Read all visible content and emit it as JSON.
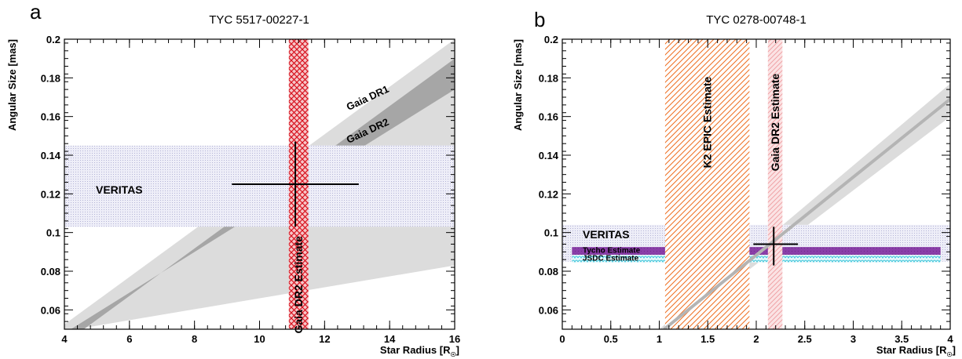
{
  "chart_data": [
    {
      "type": "line",
      "panel_letter": "a",
      "title": "TYC 5517-00227-1",
      "xlabel": "Star Radius [R",
      "xlabel_sub": "☉",
      "xlabel_close": "]",
      "ylabel": "Angular Size [mas]",
      "xlim": [
        4,
        16
      ],
      "ylim": [
        0.05,
        0.2
      ],
      "xticks": [
        4,
        6,
        8,
        10,
        12,
        14,
        16
      ],
      "xtick_labels": [
        "4",
        "6",
        "8",
        "10",
        "12",
        "14",
        "16"
      ],
      "yticks": [
        0.06,
        0.08,
        0.1,
        0.12,
        0.14,
        0.16,
        0.18,
        0.2
      ],
      "ytick_labels": [
        "0.06",
        "0.08",
        "0.1",
        "0.12",
        "0.14",
        "0.16",
        "0.18",
        "0.2"
      ],
      "bands": [
        {
          "label": "Gaia DR1",
          "color": "#dcdcdc",
          "lower": [
            [
              4,
              0.049
            ],
            [
              16,
              0.083
            ]
          ],
          "upper": [
            [
              3.8,
              0.05
            ],
            [
              16,
              0.2
            ]
          ]
        },
        {
          "label": "Gaia DR2",
          "color": "#a6a6a6",
          "lower": [
            [
              4.2,
              0.05
            ],
            [
              16,
              0.174
            ]
          ],
          "upper": [
            [
              4.6,
              0.05
            ],
            [
              16,
              0.19
            ]
          ]
        }
      ],
      "horizontal_regions": [
        {
          "label": "VERITAS",
          "ymin": 0.103,
          "ymax": 0.145,
          "color": "#e4e4f4"
        }
      ],
      "vertical_regions": [
        {
          "label": "Gaia DR2 Estimate",
          "xmin": 10.9,
          "xmax": 11.5,
          "color": "#e0202a"
        }
      ],
      "points": [
        {
          "x": 11.1,
          "y": 0.125,
          "xerr": [
            9.15,
            13.05
          ],
          "yerr": [
            0.103,
            0.147
          ]
        }
      ]
    },
    {
      "type": "line",
      "panel_letter": "b",
      "title": "TYC 0278-00748-1",
      "xlabel": "Star Radius [R",
      "xlabel_sub": "☉",
      "xlabel_close": "]",
      "ylabel": "Angular Size [mas]",
      "xlim": [
        0,
        4
      ],
      "ylim": [
        0.05,
        0.2
      ],
      "xticks": [
        0,
        0.5,
        1,
        1.5,
        2,
        2.5,
        3,
        3.5,
        4
      ],
      "xtick_labels": [
        "0",
        "0.5",
        "1",
        "1.5",
        "2",
        "2.5",
        "3",
        "3.5",
        "4"
      ],
      "yticks": [
        0.06,
        0.08,
        0.1,
        0.12,
        0.14,
        0.16,
        0.18,
        0.2
      ],
      "ytick_labels": [
        "0.06",
        "0.08",
        "0.1",
        "0.12",
        "0.14",
        "0.16",
        "0.18",
        "0.2"
      ],
      "bands": [
        {
          "label": "",
          "color": "#dcdcdc",
          "lower": [
            [
              1.12,
              0.05
            ],
            [
              4,
              0.16
            ]
          ],
          "upper": [
            [
              1.0,
              0.05
            ],
            [
              4,
              0.177
            ]
          ]
        }
      ],
      "lines": [
        {
          "color": "#b4b4b4",
          "points": [
            [
              1.05,
              0.05
            ],
            [
              4,
              0.169
            ]
          ]
        }
      ],
      "horizontal_regions": [
        {
          "label": "VERITAS",
          "ymin": 0.085,
          "ymax": 0.104,
          "color": "#e4e4f4"
        },
        {
          "label": "Tycho Estimate",
          "ymin": 0.0865,
          "ymax": 0.0925,
          "color": "#8a3ea8"
        },
        {
          "label": "JSDC Estimate",
          "ymin": 0.0845,
          "ymax": 0.0885,
          "color": "#55d6e6"
        }
      ],
      "vertical_regions": [
        {
          "label": "K2 EPIC Estimate",
          "xmin": 1.06,
          "xmax": 1.93,
          "color": "#f07a2a"
        },
        {
          "label": "Gaia DR2 Estimate",
          "xmin": 2.12,
          "xmax": 2.27,
          "color": "#f4a4a8"
        }
      ],
      "points": [
        {
          "x": 2.18,
          "y": 0.094,
          "xerr": [
            1.97,
            2.43
          ],
          "yerr": [
            0.083,
            0.103
          ]
        }
      ]
    }
  ]
}
